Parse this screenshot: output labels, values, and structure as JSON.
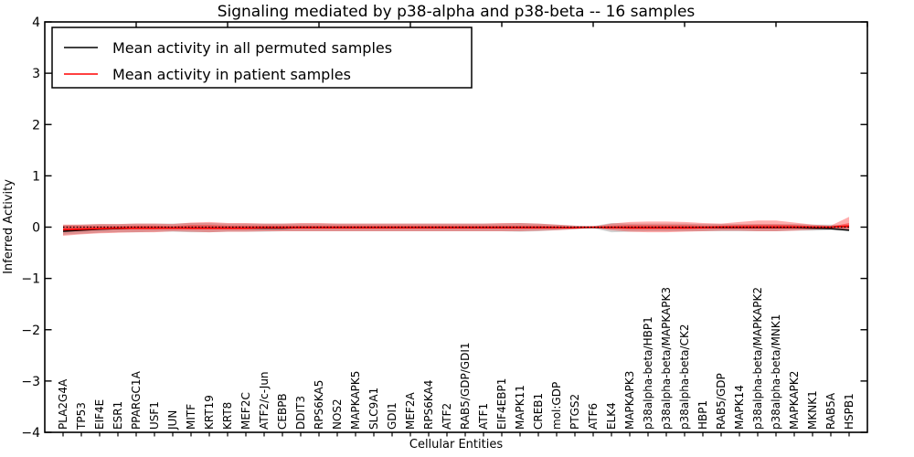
{
  "chart_data": {
    "type": "line",
    "title": "Signaling mediated by p38-alpha and p38-beta -- 16 samples",
    "xlabel": "Cellular Entities",
    "ylabel": "Inferred Activity",
    "ylim": [
      -4,
      4
    ],
    "xlim": [
      0,
      45
    ],
    "yticks": [
      -4,
      -3,
      -2,
      -1,
      0,
      1,
      2,
      3,
      4
    ],
    "ytick_labels": [
      "−4",
      "−3",
      "−2",
      "−1",
      "0",
      "1",
      "2",
      "3",
      "4"
    ],
    "xtick_step": 5,
    "grid": false,
    "legend_position": "upper left",
    "zero_line": 0,
    "background": "#ffffff",
    "categories": [
      "PLA2G4A",
      "TP53",
      "EIF4E",
      "ESR1",
      "PPARGC1A",
      "USF1",
      "JUN",
      "MITF",
      "KRT19",
      "KRT8",
      "MEF2C",
      "ATF2/c-Jun",
      "CEBPB",
      "DDIT3",
      "RPS6KA5",
      "NOS2",
      "MAPKAPK5",
      "SLC9A1",
      "GDI1",
      "MEF2A",
      "RPS6KA4",
      "ATF2",
      "RAB5/GDP/GDI1",
      "ATF1",
      "EIF4EBP1",
      "MAPK11",
      "CREB1",
      "mol:GDP",
      "PTGS2",
      "ATF6",
      "ELK4",
      "MAPKAPK3",
      "p38alpha-beta/HBP1",
      "p38alpha-beta/MAPKAPK3",
      "p38alpha-beta/CK2",
      "HBP1",
      "RAB5/GDP",
      "MAPK14",
      "p38alpha-beta/MAPKAPK2",
      "p38alpha-beta/MNK1",
      "MAPKAPK2",
      "MKNK1",
      "RAB5A",
      "HSPB1"
    ],
    "series": [
      {
        "name": "Mean activity in all permuted samples",
        "color": "#000000",
        "values": [
          -0.08,
          -0.06,
          -0.04,
          -0.03,
          -0.02,
          -0.02,
          -0.02,
          -0.02,
          -0.02,
          -0.02,
          -0.02,
          -0.02,
          -0.02,
          -0.01,
          -0.01,
          -0.01,
          -0.01,
          -0.01,
          -0.01,
          -0.01,
          -0.01,
          -0.01,
          -0.01,
          -0.01,
          -0.01,
          -0.01,
          -0.01,
          -0.01,
          -0.01,
          -0.01,
          -0.01,
          -0.01,
          -0.01,
          -0.01,
          -0.01,
          -0.01,
          -0.01,
          -0.01,
          -0.01,
          -0.01,
          -0.01,
          -0.02,
          -0.03,
          -0.06
        ]
      },
      {
        "name": "Mean activity in patient samples",
        "color": "#ff0000",
        "values": [
          -0.05,
          -0.04,
          -0.03,
          -0.02,
          -0.02,
          -0.02,
          -0.02,
          -0.02,
          -0.02,
          -0.02,
          -0.02,
          -0.01,
          -0.01,
          -0.01,
          -0.01,
          -0.01,
          -0.01,
          -0.01,
          -0.01,
          -0.01,
          -0.01,
          -0.01,
          -0.01,
          -0.01,
          -0.01,
          -0.01,
          -0.01,
          -0.01,
          -0.01,
          0.0,
          -0.01,
          -0.01,
          -0.01,
          -0.01,
          -0.01,
          -0.01,
          0.0,
          0.0,
          0.0,
          0.0,
          0.0,
          0.0,
          0.0,
          0.02
        ]
      }
    ],
    "bands": [
      {
        "name": "permuted-sample-range",
        "color": "#999999",
        "opacity": 0.45,
        "lower": [
          -0.15,
          -0.13,
          -0.11,
          -0.1,
          -0.1,
          -0.09,
          -0.09,
          -0.1,
          -0.1,
          -0.09,
          -0.09,
          -0.09,
          -0.08,
          -0.08,
          -0.08,
          -0.08,
          -0.08,
          -0.08,
          -0.08,
          -0.08,
          -0.08,
          -0.08,
          -0.08,
          -0.08,
          -0.08,
          -0.09,
          -0.08,
          -0.06,
          -0.04,
          -0.02,
          -0.1,
          -0.09,
          -0.08,
          -0.08,
          -0.08,
          -0.08,
          -0.08,
          -0.08,
          -0.08,
          -0.08,
          -0.07,
          -0.07,
          -0.06,
          -0.08
        ],
        "upper": [
          0.04,
          0.05,
          0.06,
          0.06,
          0.07,
          0.07,
          0.07,
          0.08,
          0.08,
          0.07,
          0.07,
          0.07,
          0.07,
          0.07,
          0.07,
          0.07,
          0.07,
          0.07,
          0.07,
          0.07,
          0.07,
          0.07,
          0.07,
          0.07,
          0.07,
          0.08,
          0.07,
          0.05,
          0.03,
          0.02,
          0.08,
          0.07,
          0.07,
          0.07,
          0.07,
          0.06,
          0.06,
          0.06,
          0.06,
          0.06,
          0.06,
          0.05,
          0.05,
          0.03
        ]
      },
      {
        "name": "patient-sample-range",
        "color": "#ff0000",
        "opacity": 0.32,
        "lower": [
          -0.17,
          -0.14,
          -0.12,
          -0.11,
          -0.1,
          -0.1,
          -0.08,
          -0.09,
          -0.1,
          -0.09,
          -0.09,
          -0.08,
          -0.08,
          -0.08,
          -0.08,
          -0.08,
          -0.08,
          -0.08,
          -0.08,
          -0.08,
          -0.08,
          -0.08,
          -0.08,
          -0.08,
          -0.08,
          -0.08,
          -0.07,
          -0.06,
          -0.04,
          -0.01,
          -0.06,
          -0.09,
          -0.1,
          -0.1,
          -0.09,
          -0.08,
          -0.07,
          -0.07,
          -0.08,
          -0.08,
          -0.07,
          -0.05,
          -0.03,
          -0.05
        ],
        "upper": [
          0.05,
          0.05,
          0.06,
          0.06,
          0.07,
          0.07,
          0.06,
          0.09,
          0.1,
          0.08,
          0.08,
          0.07,
          0.07,
          0.08,
          0.08,
          0.07,
          0.07,
          0.07,
          0.07,
          0.07,
          0.07,
          0.07,
          0.07,
          0.07,
          0.08,
          0.08,
          0.07,
          0.05,
          0.03,
          0.01,
          0.07,
          0.1,
          0.11,
          0.11,
          0.1,
          0.08,
          0.07,
          0.1,
          0.13,
          0.13,
          0.09,
          0.05,
          0.03,
          0.2
        ]
      },
      {
        "name": "patient-sample-range-inner",
        "color": "#ff0000",
        "opacity": 0.4,
        "lower": [
          -0.07,
          -0.06,
          -0.05,
          -0.04,
          -0.04,
          -0.04,
          -0.03,
          -0.04,
          -0.04,
          -0.04,
          -0.04,
          -0.03,
          -0.03,
          -0.03,
          -0.03,
          -0.03,
          -0.03,
          -0.03,
          -0.03,
          -0.03,
          -0.03,
          -0.03,
          -0.03,
          -0.03,
          -0.03,
          -0.03,
          -0.03,
          -0.02,
          -0.02,
          -0.01,
          -0.02,
          -0.04,
          -0.04,
          -0.04,
          -0.04,
          -0.03,
          -0.03,
          -0.03,
          -0.03,
          -0.03,
          -0.03,
          -0.02,
          -0.01,
          -0.02
        ],
        "upper": [
          0.02,
          0.02,
          0.02,
          0.02,
          0.03,
          0.03,
          0.02,
          0.04,
          0.04,
          0.03,
          0.03,
          0.03,
          0.03,
          0.03,
          0.03,
          0.03,
          0.03,
          0.03,
          0.03,
          0.03,
          0.03,
          0.03,
          0.03,
          0.03,
          0.03,
          0.03,
          0.03,
          0.02,
          0.01,
          0.01,
          0.03,
          0.04,
          0.04,
          0.04,
          0.04,
          0.03,
          0.03,
          0.04,
          0.05,
          0.05,
          0.04,
          0.02,
          0.01,
          0.08
        ]
      }
    ]
  }
}
